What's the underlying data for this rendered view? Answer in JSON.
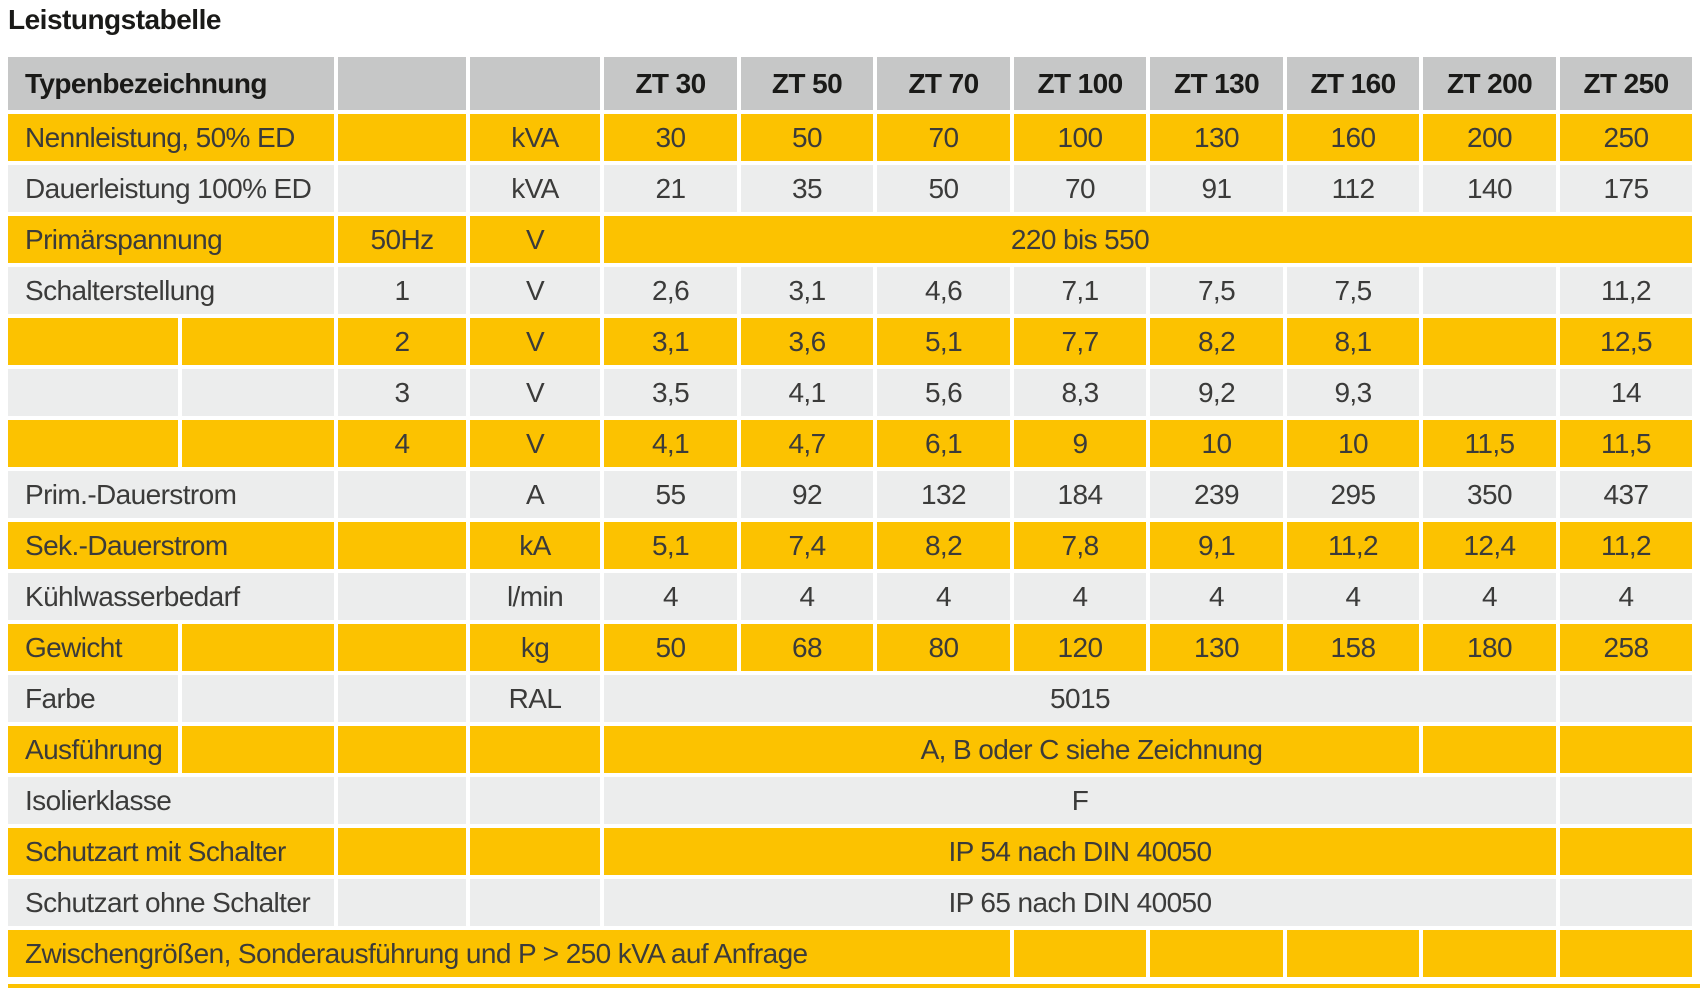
{
  "page_title": "Leistungstabelle",
  "colors": {
    "accent_yellow": "#FCC200",
    "header_gray": "#C6C7C7",
    "row_gray": "#ECEDED",
    "text_dark": "#3B3B3A"
  },
  "table": {
    "rows": [
      {
        "name": "header-row",
        "tone": "h",
        "cells": [
          {
            "t": "Typenbezeichnung",
            "s": 2,
            "a": "l"
          },
          {
            "t": ""
          },
          {
            "t": ""
          },
          {
            "t": "ZT 30"
          },
          {
            "t": "ZT 50"
          },
          {
            "t": "ZT 70"
          },
          {
            "t": "ZT 100"
          },
          {
            "t": "ZT 130"
          },
          {
            "t": "ZT 160"
          },
          {
            "t": "ZT 200"
          },
          {
            "t": "ZT 250"
          }
        ]
      },
      {
        "name": "row-nennleistung",
        "tone": "y",
        "cells": [
          {
            "t": "Nennleistung, 50% ED",
            "s": 2,
            "a": "l"
          },
          {
            "t": ""
          },
          {
            "t": "kVA"
          },
          "30",
          "50",
          "70",
          "100",
          "130",
          "160",
          "200",
          "250"
        ]
      },
      {
        "name": "row-dauerleistung",
        "tone": "g",
        "cells": [
          {
            "t": "Dauerleistung 100% ED",
            "s": 2,
            "a": "l"
          },
          {
            "t": ""
          },
          {
            "t": "kVA"
          },
          "21",
          "35",
          "50",
          "70",
          "91",
          "112",
          "140",
          "175"
        ]
      },
      {
        "name": "row-primaerspannung",
        "tone": "y",
        "cells": [
          {
            "t": "Primärspannung",
            "s": 2,
            "a": "l"
          },
          {
            "t": "50Hz"
          },
          {
            "t": "V"
          },
          {
            "t": "220 bis 550",
            "s": 8,
            "cls": "pr"
          }
        ]
      },
      {
        "name": "row-schalterstellung-1",
        "tone": "g",
        "cells": [
          {
            "t": "Schalterstellung",
            "s": 2,
            "a": "l"
          },
          {
            "t": "1"
          },
          {
            "t": "V"
          },
          "2,6",
          "3,1",
          "4,6",
          "7,1",
          "7,5",
          "7,5",
          "",
          "11,2"
        ]
      },
      {
        "name": "row-schalterstellung-2",
        "tone": "y",
        "cells": [
          {
            "t": ""
          },
          {
            "t": ""
          },
          {
            "t": "2"
          },
          {
            "t": "V"
          },
          "3,1",
          "3,6",
          "5,1",
          "7,7",
          "8,2",
          "8,1",
          "",
          "12,5"
        ]
      },
      {
        "name": "row-schalterstellung-3",
        "tone": "g",
        "cells": [
          {
            "t": ""
          },
          {
            "t": ""
          },
          {
            "t": "3"
          },
          {
            "t": "V"
          },
          "3,5",
          "4,1",
          "5,6",
          "8,3",
          "9,2",
          "9,3",
          "",
          "14"
        ]
      },
      {
        "name": "row-schalterstellung-4",
        "tone": "y",
        "cells": [
          {
            "t": ""
          },
          {
            "t": ""
          },
          {
            "t": "4"
          },
          {
            "t": "V"
          },
          "4,1",
          "4,7",
          "6,1",
          "9",
          "10",
          "10",
          "11,5",
          "11,5"
        ]
      },
      {
        "name": "row-prim-dauerstrom",
        "tone": "g",
        "cells": [
          {
            "t": "Prim.-Dauerstrom",
            "s": 2,
            "a": "l"
          },
          {
            "t": ""
          },
          {
            "t": "A"
          },
          "55",
          "92",
          "132",
          "184",
          "239",
          "295",
          "350",
          "437"
        ]
      },
      {
        "name": "row-sek-dauerstrom",
        "tone": "y",
        "cells": [
          {
            "t": "Sek.-Dauerstrom",
            "s": 2,
            "a": "l"
          },
          {
            "t": ""
          },
          {
            "t": "kA"
          },
          "5,1",
          "7,4",
          "8,2",
          "7,8",
          "9,1",
          "11,2",
          "12,4",
          "11,2"
        ]
      },
      {
        "name": "row-kuehlwasserbedarf",
        "tone": "g",
        "cells": [
          {
            "t": "Kühlwasserbedarf",
            "s": 2,
            "a": "l"
          },
          {
            "t": ""
          },
          {
            "t": "l/min"
          },
          "4",
          "4",
          "4",
          "4",
          "4",
          "4",
          "4",
          "4"
        ]
      },
      {
        "name": "row-gewicht",
        "tone": "y",
        "cells": [
          {
            "t": "Gewicht",
            "a": "l"
          },
          {
            "t": ""
          },
          {
            "t": ""
          },
          {
            "t": "kg"
          },
          "50",
          "68",
          "80",
          "120",
          "130",
          "158",
          "180",
          "258"
        ]
      },
      {
        "name": "row-farbe",
        "tone": "g",
        "cells": [
          {
            "t": "Farbe",
            "a": "l"
          },
          {
            "t": ""
          },
          {
            "t": ""
          },
          {
            "t": "RAL"
          },
          {
            "t": "5015",
            "s": 7
          },
          {
            "t": ""
          }
        ]
      },
      {
        "name": "row-ausfuehrung",
        "tone": "y",
        "cells": [
          {
            "t": "Ausführung",
            "a": "l"
          },
          {
            "t": ""
          },
          {
            "t": ""
          },
          {
            "t": ""
          },
          {
            "t": "A, B oder C siehe Zeichnung",
            "s": 6,
            "cls": "pl"
          },
          {
            "t": ""
          },
          {
            "t": ""
          }
        ]
      },
      {
        "name": "row-isolierklasse",
        "tone": "g",
        "cells": [
          {
            "t": "Isolierklasse",
            "s": 2,
            "a": "l"
          },
          {
            "t": ""
          },
          {
            "t": ""
          },
          {
            "t": "F",
            "s": 7
          },
          {
            "t": ""
          }
        ]
      },
      {
        "name": "row-schutzart-mit-schalter",
        "tone": "y",
        "cells": [
          {
            "t": "Schutzart mit Schalter",
            "s": 2,
            "a": "l"
          },
          {
            "t": ""
          },
          {
            "t": ""
          },
          {
            "t": "IP 54 nach DIN 40050",
            "s": 7
          },
          {
            "t": ""
          }
        ]
      },
      {
        "name": "row-schutzart-ohne-schalter",
        "tone": "g",
        "cells": [
          {
            "t": "Schutzart ohne Schalter",
            "s": 2,
            "a": "l"
          },
          {
            "t": ""
          },
          {
            "t": ""
          },
          {
            "t": "IP 65 nach DIN 40050",
            "s": 7
          },
          {
            "t": ""
          }
        ]
      },
      {
        "name": "row-zwischengroessen-hinweis",
        "tone": "y",
        "cells": [
          {
            "t": "Zwischengrößen, Sonderausführung und P > 250 kVA auf Anfrage",
            "s": 7,
            "a": "l"
          },
          {
            "t": ""
          },
          {
            "t": ""
          },
          {
            "t": ""
          },
          {
            "t": ""
          },
          {
            "t": ""
          }
        ]
      }
    ]
  }
}
